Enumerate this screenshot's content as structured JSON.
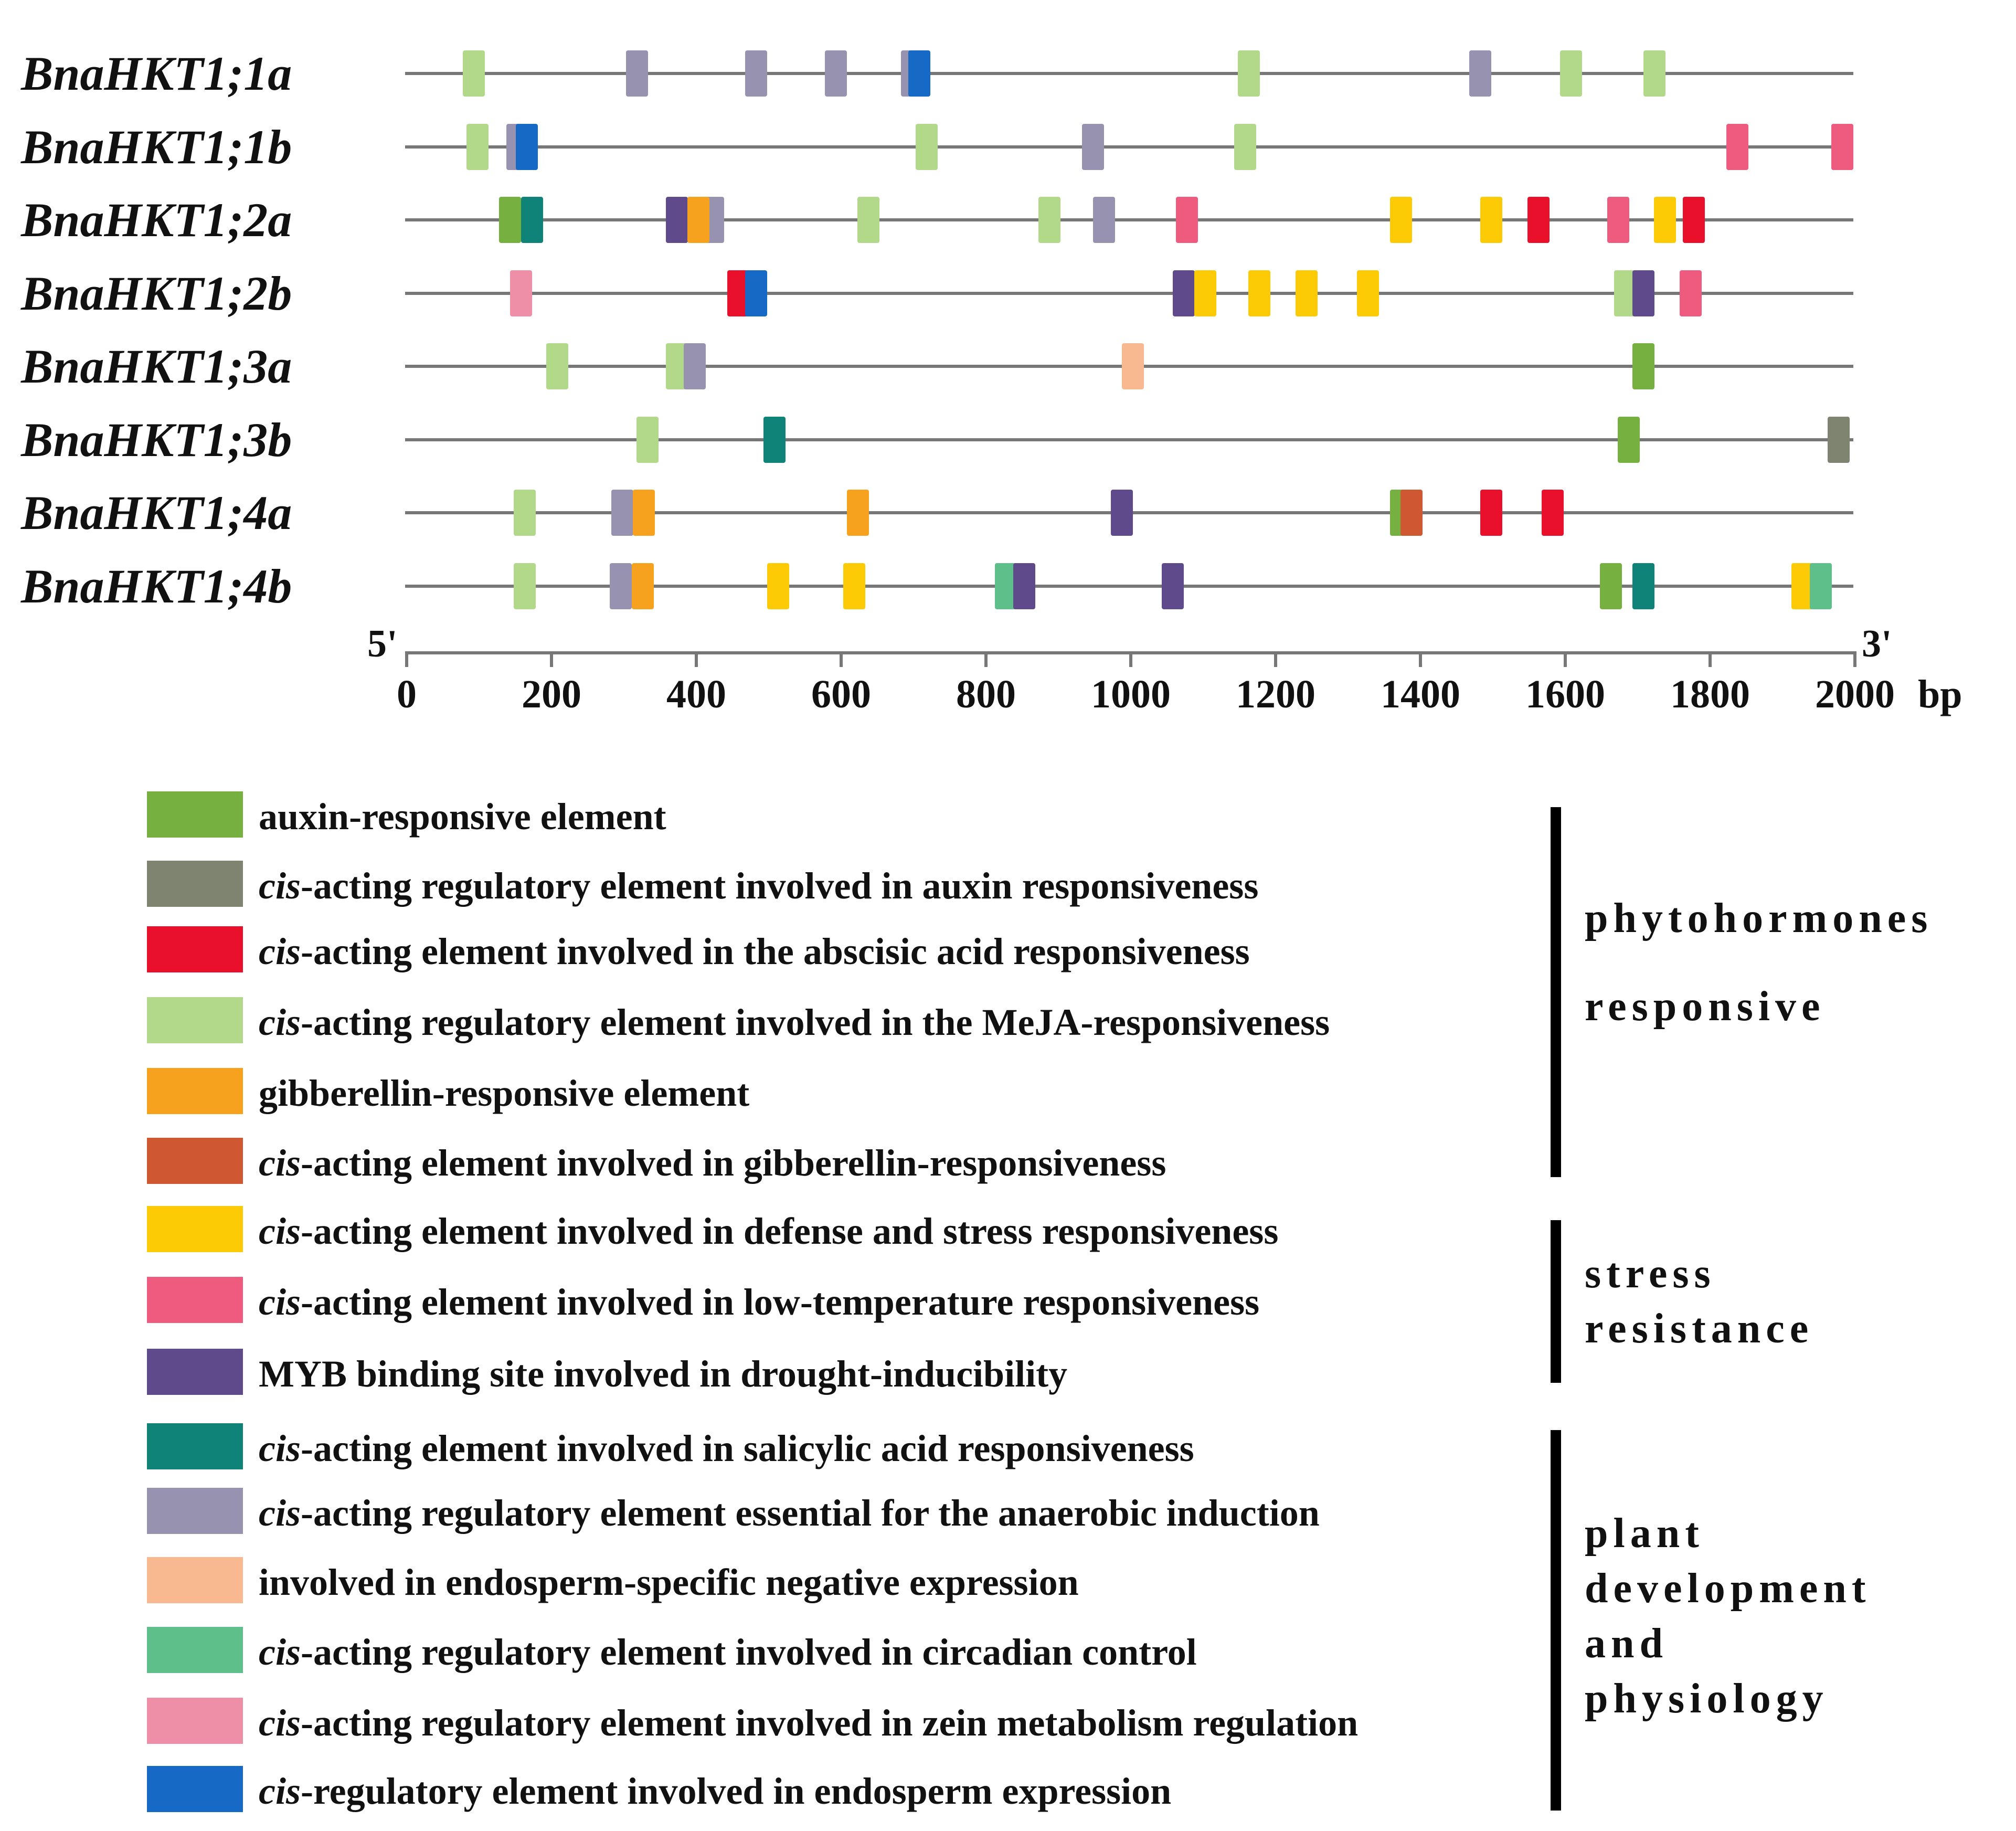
{
  "axis": {
    "start_label": "5'",
    "end_label": "3'",
    "unit": "bp",
    "ticks": [
      "0",
      "200",
      "400",
      "600",
      "800",
      "1000",
      "1200",
      "1400",
      "1600",
      "1800",
      "2000"
    ]
  },
  "categories": {
    "auxin": {
      "label_pre": "",
      "label_italic": "",
      "label_rest": "auxin-responsive element",
      "color": "#76b041"
    },
    "auxin_reg": {
      "label_pre": "",
      "label_italic": "cis",
      "label_rest": "-acting regulatory element involved in auxin responsiveness",
      "color": "#7f8470"
    },
    "aba": {
      "label_pre": "",
      "label_italic": "cis",
      "label_rest": "-acting element involved in the abscisic acid responsiveness",
      "color": "#e8102a"
    },
    "meja": {
      "label_pre": "",
      "label_italic": "cis",
      "label_rest": "-acting regulatory element involved in the MeJA-responsiveness",
      "color": "#b2d98a"
    },
    "gib": {
      "label_pre": "",
      "label_italic": "",
      "label_rest": "gibberellin-responsive element",
      "color": "#f6a21e"
    },
    "gib_cis": {
      "label_pre": "",
      "label_italic": "cis",
      "label_rest": "-acting element involved in gibberellin-responsiveness",
      "color": "#cf5731"
    },
    "defense": {
      "label_pre": "",
      "label_italic": "cis",
      "label_rest": "-acting element involved in defense and stress responsiveness",
      "color": "#fccb05"
    },
    "lowtemp": {
      "label_pre": "",
      "label_italic": "cis",
      "label_rest": "-acting element involved in low-temperature responsiveness",
      "color": "#ee5b7e"
    },
    "myb": {
      "label_pre": "",
      "label_italic": "",
      "label_rest": "MYB binding site involved in drought-inducibility",
      "color": "#5f4b8b"
    },
    "salicylic": {
      "label_pre": "",
      "label_italic": "cis",
      "label_rest": "-acting element involved in salicylic acid responsiveness",
      "color": "#0f8378"
    },
    "anaerobic": {
      "label_pre": "",
      "label_italic": "cis",
      "label_rest": "-acting regulatory element essential for the anaerobic induction",
      "color": "#9792b0"
    },
    "endo_neg": {
      "label_pre": "",
      "label_italic": "",
      "label_rest": "involved in endosperm-specific negative expression",
      "color": "#f9b990"
    },
    "circadian": {
      "label_pre": "",
      "label_italic": "cis",
      "label_rest": "-acting regulatory element involved in circadian control",
      "color": "#5ebf8b"
    },
    "zein": {
      "label_pre": "",
      "label_italic": "cis",
      "label_rest": "-acting regulatory element involved in zein metabolism regulation",
      "color": "#ef8fa7"
    },
    "endo_expr": {
      "label_pre": "",
      "label_italic": "cis",
      "label_rest": "-regulatory element involved in endosperm expression",
      "color": "#1769c6"
    }
  },
  "legend_order": [
    "auxin",
    "auxin_reg",
    "aba",
    "meja",
    "gib",
    "gib_cis",
    "defense",
    "lowtemp",
    "myb",
    "salicylic",
    "anaerobic",
    "endo_neg",
    "circadian",
    "zein",
    "endo_expr"
  ],
  "groups": [
    {
      "lines": [
        "phytohormones",
        "responsive"
      ]
    },
    {
      "lines": [
        "stress",
        "resistance"
      ]
    },
    {
      "lines": [
        "plant",
        "development",
        "and",
        "physiology"
      ]
    }
  ],
  "genes": [
    {
      "name": "BnaHKT1;1a",
      "elements": [
        {
          "pos": 95,
          "type": "meja"
        },
        {
          "pos": 320,
          "type": "anaerobic"
        },
        {
          "pos": 485,
          "type": "anaerobic"
        },
        {
          "pos": 595,
          "type": "anaerobic"
        },
        {
          "pos": 700,
          "type": "anaerobic"
        },
        {
          "pos": 710,
          "type": "endo_expr"
        },
        {
          "pos": 1165,
          "type": "meja"
        },
        {
          "pos": 1485,
          "type": "anaerobic"
        },
        {
          "pos": 1610,
          "type": "meja"
        },
        {
          "pos": 1725,
          "type": "meja"
        }
      ]
    },
    {
      "name": "BnaHKT1;1b",
      "elements": [
        {
          "pos": 100,
          "type": "meja"
        },
        {
          "pos": 155,
          "type": "anaerobic"
        },
        {
          "pos": 168,
          "type": "endo_expr"
        },
        {
          "pos": 720,
          "type": "meja"
        },
        {
          "pos": 950,
          "type": "anaerobic"
        },
        {
          "pos": 1160,
          "type": "meja"
        },
        {
          "pos": 1840,
          "type": "lowtemp"
        },
        {
          "pos": 1985,
          "type": "anaerobic"
        },
        {
          "pos": 2000,
          "type": "lowtemp"
        }
      ]
    },
    {
      "name": "BnaHKT1;2a",
      "elements": [
        {
          "pos": 145,
          "type": "auxin"
        },
        {
          "pos": 175,
          "type": "salicylic"
        },
        {
          "pos": 375,
          "type": "myb"
        },
        {
          "pos": 425,
          "type": "anaerobic"
        },
        {
          "pos": 405,
          "type": "gib"
        },
        {
          "pos": 640,
          "type": "meja"
        },
        {
          "pos": 890,
          "type": "meja"
        },
        {
          "pos": 965,
          "type": "anaerobic"
        },
        {
          "pos": 1080,
          "type": "lowtemp"
        },
        {
          "pos": 1375,
          "type": "defense"
        },
        {
          "pos": 1500,
          "type": "defense"
        },
        {
          "pos": 1565,
          "type": "aba"
        },
        {
          "pos": 1675,
          "type": "lowtemp"
        },
        {
          "pos": 1740,
          "type": "defense"
        },
        {
          "pos": 1780,
          "type": "aba"
        }
      ]
    },
    {
      "name": "BnaHKT1;2b",
      "elements": [
        {
          "pos": 160,
          "type": "zein"
        },
        {
          "pos": 460,
          "type": "aba"
        },
        {
          "pos": 485,
          "type": "endo_expr"
        },
        {
          "pos": 1075,
          "type": "myb"
        },
        {
          "pos": 1105,
          "type": "defense"
        },
        {
          "pos": 1180,
          "type": "defense"
        },
        {
          "pos": 1245,
          "type": "defense"
        },
        {
          "pos": 1330,
          "type": "defense"
        },
        {
          "pos": 1685,
          "type": "meja"
        },
        {
          "pos": 1710,
          "type": "myb"
        },
        {
          "pos": 1775,
          "type": "lowtemp"
        }
      ]
    },
    {
      "name": "BnaHKT1;3a",
      "elements": [
        {
          "pos": 210,
          "type": "meja"
        },
        {
          "pos": 375,
          "type": "meja"
        },
        {
          "pos": 400,
          "type": "anaerobic"
        },
        {
          "pos": 1005,
          "type": "endo_neg"
        },
        {
          "pos": 1710,
          "type": "auxin"
        }
      ]
    },
    {
      "name": "BnaHKT1;3b",
      "elements": [
        {
          "pos": 335,
          "type": "meja"
        },
        {
          "pos": 510,
          "type": "salicylic"
        },
        {
          "pos": 1690,
          "type": "auxin"
        },
        {
          "pos": 1980,
          "type": "auxin_reg"
        }
      ]
    },
    {
      "name": "BnaHKT1;4a",
      "elements": [
        {
          "pos": 165,
          "type": "meja"
        },
        {
          "pos": 300,
          "type": "anaerobic"
        },
        {
          "pos": 330,
          "type": "gib"
        },
        {
          "pos": 625,
          "type": "gib"
        },
        {
          "pos": 990,
          "type": "myb"
        },
        {
          "pos": 1375,
          "type": "auxin"
        },
        {
          "pos": 1390,
          "type": "gib_cis"
        },
        {
          "pos": 1500,
          "type": "aba"
        },
        {
          "pos": 1585,
          "type": "aba"
        }
      ]
    },
    {
      "name": "BnaHKT1;4b",
      "elements": [
        {
          "pos": 165,
          "type": "meja"
        },
        {
          "pos": 298,
          "type": "anaerobic"
        },
        {
          "pos": 328,
          "type": "gib"
        },
        {
          "pos": 515,
          "type": "defense"
        },
        {
          "pos": 620,
          "type": "defense"
        },
        {
          "pos": 830,
          "type": "circadian"
        },
        {
          "pos": 855,
          "type": "myb"
        },
        {
          "pos": 1060,
          "type": "myb"
        },
        {
          "pos": 1665,
          "type": "auxin"
        },
        {
          "pos": 1710,
          "type": "salicylic"
        },
        {
          "pos": 1930,
          "type": "defense"
        },
        {
          "pos": 1955,
          "type": "circadian"
        }
      ]
    }
  ]
}
